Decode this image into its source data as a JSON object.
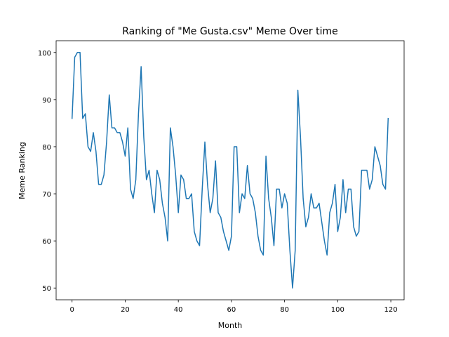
{
  "chart_data": {
    "type": "line",
    "title": "Ranking of \"Me Gusta.csv\" Meme Over time",
    "xlabel": "Month",
    "ylabel": "Meme Ranking",
    "xlim": [
      -6,
      125
    ],
    "ylim": [
      47.5,
      102.5
    ],
    "grid": false,
    "line_color": "#1f77b4",
    "x_ticks": [
      0,
      20,
      40,
      60,
      80,
      100,
      120
    ],
    "y_ticks": [
      50,
      60,
      70,
      80,
      90,
      100
    ],
    "x": [
      0,
      1,
      2,
      3,
      4,
      5,
      6,
      7,
      8,
      9,
      10,
      11,
      12,
      13,
      14,
      15,
      16,
      17,
      18,
      19,
      20,
      21,
      22,
      23,
      24,
      25,
      26,
      27,
      28,
      29,
      30,
      31,
      32,
      33,
      34,
      35,
      36,
      37,
      38,
      39,
      40,
      41,
      42,
      43,
      44,
      45,
      46,
      47,
      48,
      49,
      50,
      51,
      52,
      53,
      54,
      55,
      56,
      57,
      58,
      59,
      60,
      61,
      62,
      63,
      64,
      65,
      66,
      67,
      68,
      69,
      70,
      71,
      72,
      73,
      74,
      75,
      76,
      77,
      78,
      79,
      80,
      81,
      82,
      83,
      84,
      85,
      86,
      87,
      88,
      89,
      90,
      91,
      92,
      93,
      94,
      95,
      96,
      97,
      98,
      99,
      100,
      101,
      102,
      103,
      104,
      105,
      106,
      107,
      108,
      109,
      110,
      111,
      112,
      113,
      114,
      115,
      116,
      117,
      118,
      119
    ],
    "series": [
      {
        "values": [
          86,
          99,
          100,
          100,
          86,
          87,
          80,
          79,
          83,
          79,
          72,
          72,
          74,
          81,
          91,
          84,
          84,
          83,
          83,
          81,
          78,
          84,
          71,
          69,
          73,
          87,
          97,
          82,
          73,
          75,
          70,
          66,
          75,
          73,
          68,
          65,
          60,
          84,
          80,
          74,
          66,
          74,
          73,
          69,
          69,
          70,
          62,
          60,
          59,
          71,
          81,
          72,
          66,
          69,
          77,
          66,
          65,
          62,
          60,
          58,
          61,
          80,
          80,
          66,
          70,
          69,
          76,
          70,
          69,
          66,
          61,
          58,
          57,
          78,
          69,
          65,
          59,
          71,
          71,
          67,
          70,
          68,
          58,
          50,
          58,
          92,
          82,
          69,
          63,
          65,
          70,
          67,
          67,
          68,
          64,
          60,
          57,
          66,
          68,
          72,
          62,
          65,
          73,
          66,
          71,
          71,
          63,
          61,
          62,
          75,
          75,
          75,
          71,
          73,
          80,
          78,
          76,
          72,
          71,
          86
        ]
      }
    ]
  }
}
